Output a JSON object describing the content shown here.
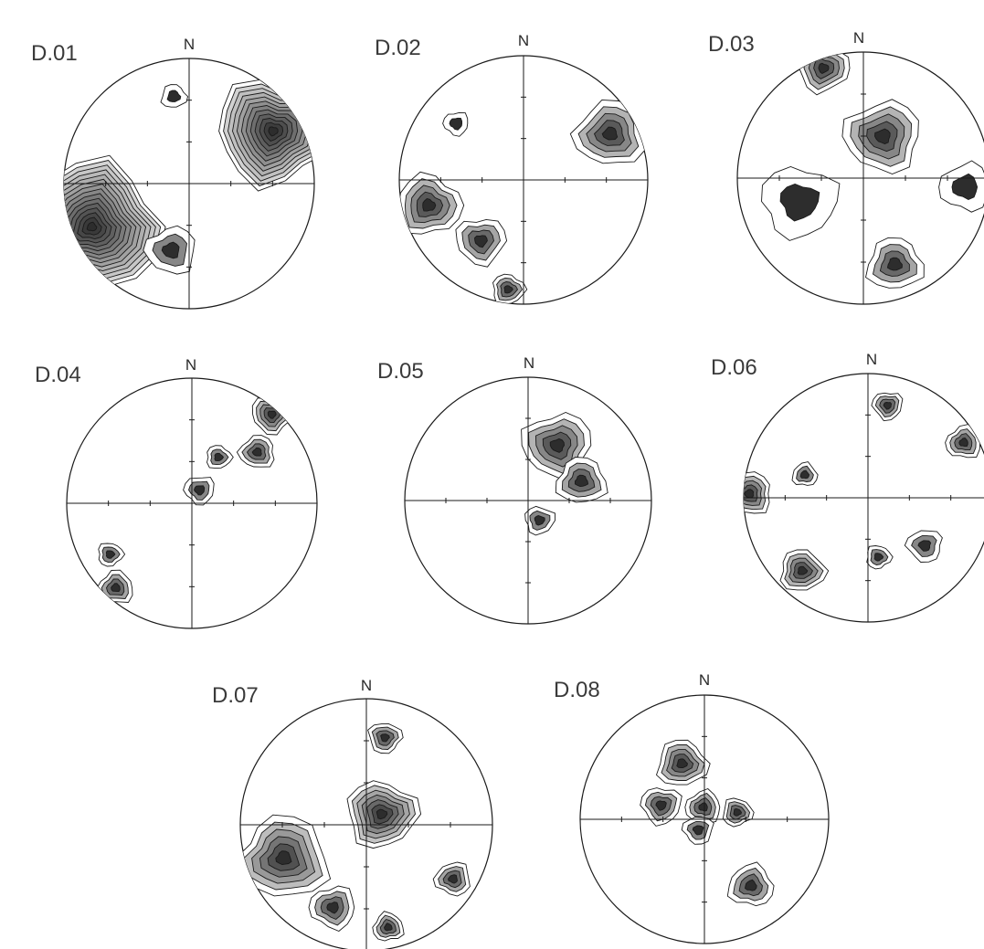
{
  "figure": {
    "north_label": "N",
    "nets": [
      {
        "title": "D.01",
        "concentrations": [
          {
            "trend": 246,
            "plunge": 16,
            "spread": 0.55,
            "rings": 14
          },
          {
            "trend": 58,
            "plunge": 22,
            "spread": 0.45,
            "rings": 11
          },
          {
            "trend": 195,
            "plunge": 44,
            "spread": 0.2,
            "rings": 2
          },
          {
            "trend": 350,
            "plunge": 30,
            "spread": 0.1,
            "rings": 1
          }
        ]
      },
      {
        "title": "D.02",
        "concentrations": [
          {
            "trend": 255,
            "plunge": 22,
            "spread": 0.26,
            "rings": 4
          },
          {
            "trend": 215,
            "plunge": 40,
            "spread": 0.2,
            "rings": 3
          },
          {
            "trend": 62,
            "plunge": 22,
            "spread": 0.28,
            "rings": 4
          },
          {
            "trend": 188,
            "plunge": 12,
            "spread": 0.13,
            "rings": 3
          },
          {
            "trend": 310,
            "plunge": 30,
            "spread": 0.1,
            "rings": 1
          }
        ]
      },
      {
        "title": "D.03",
        "concentrations": [
          {
            "trend": 340,
            "plunge": 8,
            "spread": 0.2,
            "rings": 4
          },
          {
            "trend": 25,
            "plunge": 60,
            "spread": 0.3,
            "rings": 4
          },
          {
            "trend": 160,
            "plunge": 28,
            "spread": 0.22,
            "rings": 3
          },
          {
            "trend": 250,
            "plunge": 45,
            "spread": 0.3,
            "rings": 1
          },
          {
            "trend": 95,
            "plunge": 20,
            "spread": 0.2,
            "rings": 1
          }
        ]
      },
      {
        "title": "D.04",
        "concentrations": [
          {
            "trend": 42,
            "plunge": 5,
            "spread": 0.16,
            "rings": 4
          },
          {
            "trend": 52,
            "plunge": 34,
            "spread": 0.14,
            "rings": 3
          },
          {
            "trend": 30,
            "plunge": 55,
            "spread": 0.1,
            "rings": 2
          },
          {
            "trend": 30,
            "plunge": 80,
            "spread": 0.12,
            "rings": 2
          },
          {
            "trend": 222,
            "plunge": 10,
            "spread": 0.14,
            "rings": 3
          },
          {
            "trend": 238,
            "plunge": 24,
            "spread": 0.1,
            "rings": 2
          }
        ]
      },
      {
        "title": "D.05",
        "concentrations": [
          {
            "trend": 28,
            "plunge": 48,
            "spread": 0.28,
            "rings": 4
          },
          {
            "trend": 70,
            "plunge": 52,
            "spread": 0.2,
            "rings": 3
          },
          {
            "trend": 150,
            "plunge": 75,
            "spread": 0.12,
            "rings": 2
          }
        ]
      },
      {
        "title": "D.06",
        "concentrations": [
          {
            "trend": 272,
            "plunge": 5,
            "spread": 0.18,
            "rings": 4
          },
          {
            "trend": 222,
            "plunge": 22,
            "spread": 0.18,
            "rings": 4
          },
          {
            "trend": 12,
            "plunge": 25,
            "spread": 0.12,
            "rings": 3
          },
          {
            "trend": 60,
            "plunge": 12,
            "spread": 0.14,
            "rings": 3
          },
          {
            "trend": 170,
            "plunge": 50,
            "spread": 0.1,
            "rings": 2
          },
          {
            "trend": 130,
            "plunge": 40,
            "spread": 0.14,
            "rings": 2
          },
          {
            "trend": 290,
            "plunge": 45,
            "spread": 0.1,
            "rings": 2
          }
        ]
      },
      {
        "title": "D.07",
        "concentrations": [
          {
            "trend": 248,
            "plunge": 30,
            "spread": 0.35,
            "rings": 5
          },
          {
            "trend": 55,
            "plunge": 78,
            "spread": 0.28,
            "rings": 6
          },
          {
            "trend": 202,
            "plunge": 30,
            "spread": 0.18,
            "rings": 3
          },
          {
            "trend": 168,
            "plunge": 18,
            "spread": 0.12,
            "rings": 3
          },
          {
            "trend": 12,
            "plunge": 30,
            "spread": 0.13,
            "rings": 3
          },
          {
            "trend": 122,
            "plunge": 20,
            "spread": 0.14,
            "rings": 3
          }
        ]
      },
      {
        "title": "D.08",
        "concentrations": [
          {
            "trend": 338,
            "plunge": 50,
            "spread": 0.2,
            "rings": 4
          },
          {
            "trend": 288,
            "plunge": 60,
            "spread": 0.16,
            "rings": 3
          },
          {
            "trend": 355,
            "plunge": 82,
            "spread": 0.14,
            "rings": 3
          },
          {
            "trend": 78,
            "plunge": 68,
            "spread": 0.12,
            "rings": 3
          },
          {
            "trend": 210,
            "plunge": 82,
            "spread": 0.12,
            "rings": 2
          },
          {
            "trend": 145,
            "plunge": 35,
            "spread": 0.18,
            "rings": 3
          }
        ]
      }
    ]
  }
}
